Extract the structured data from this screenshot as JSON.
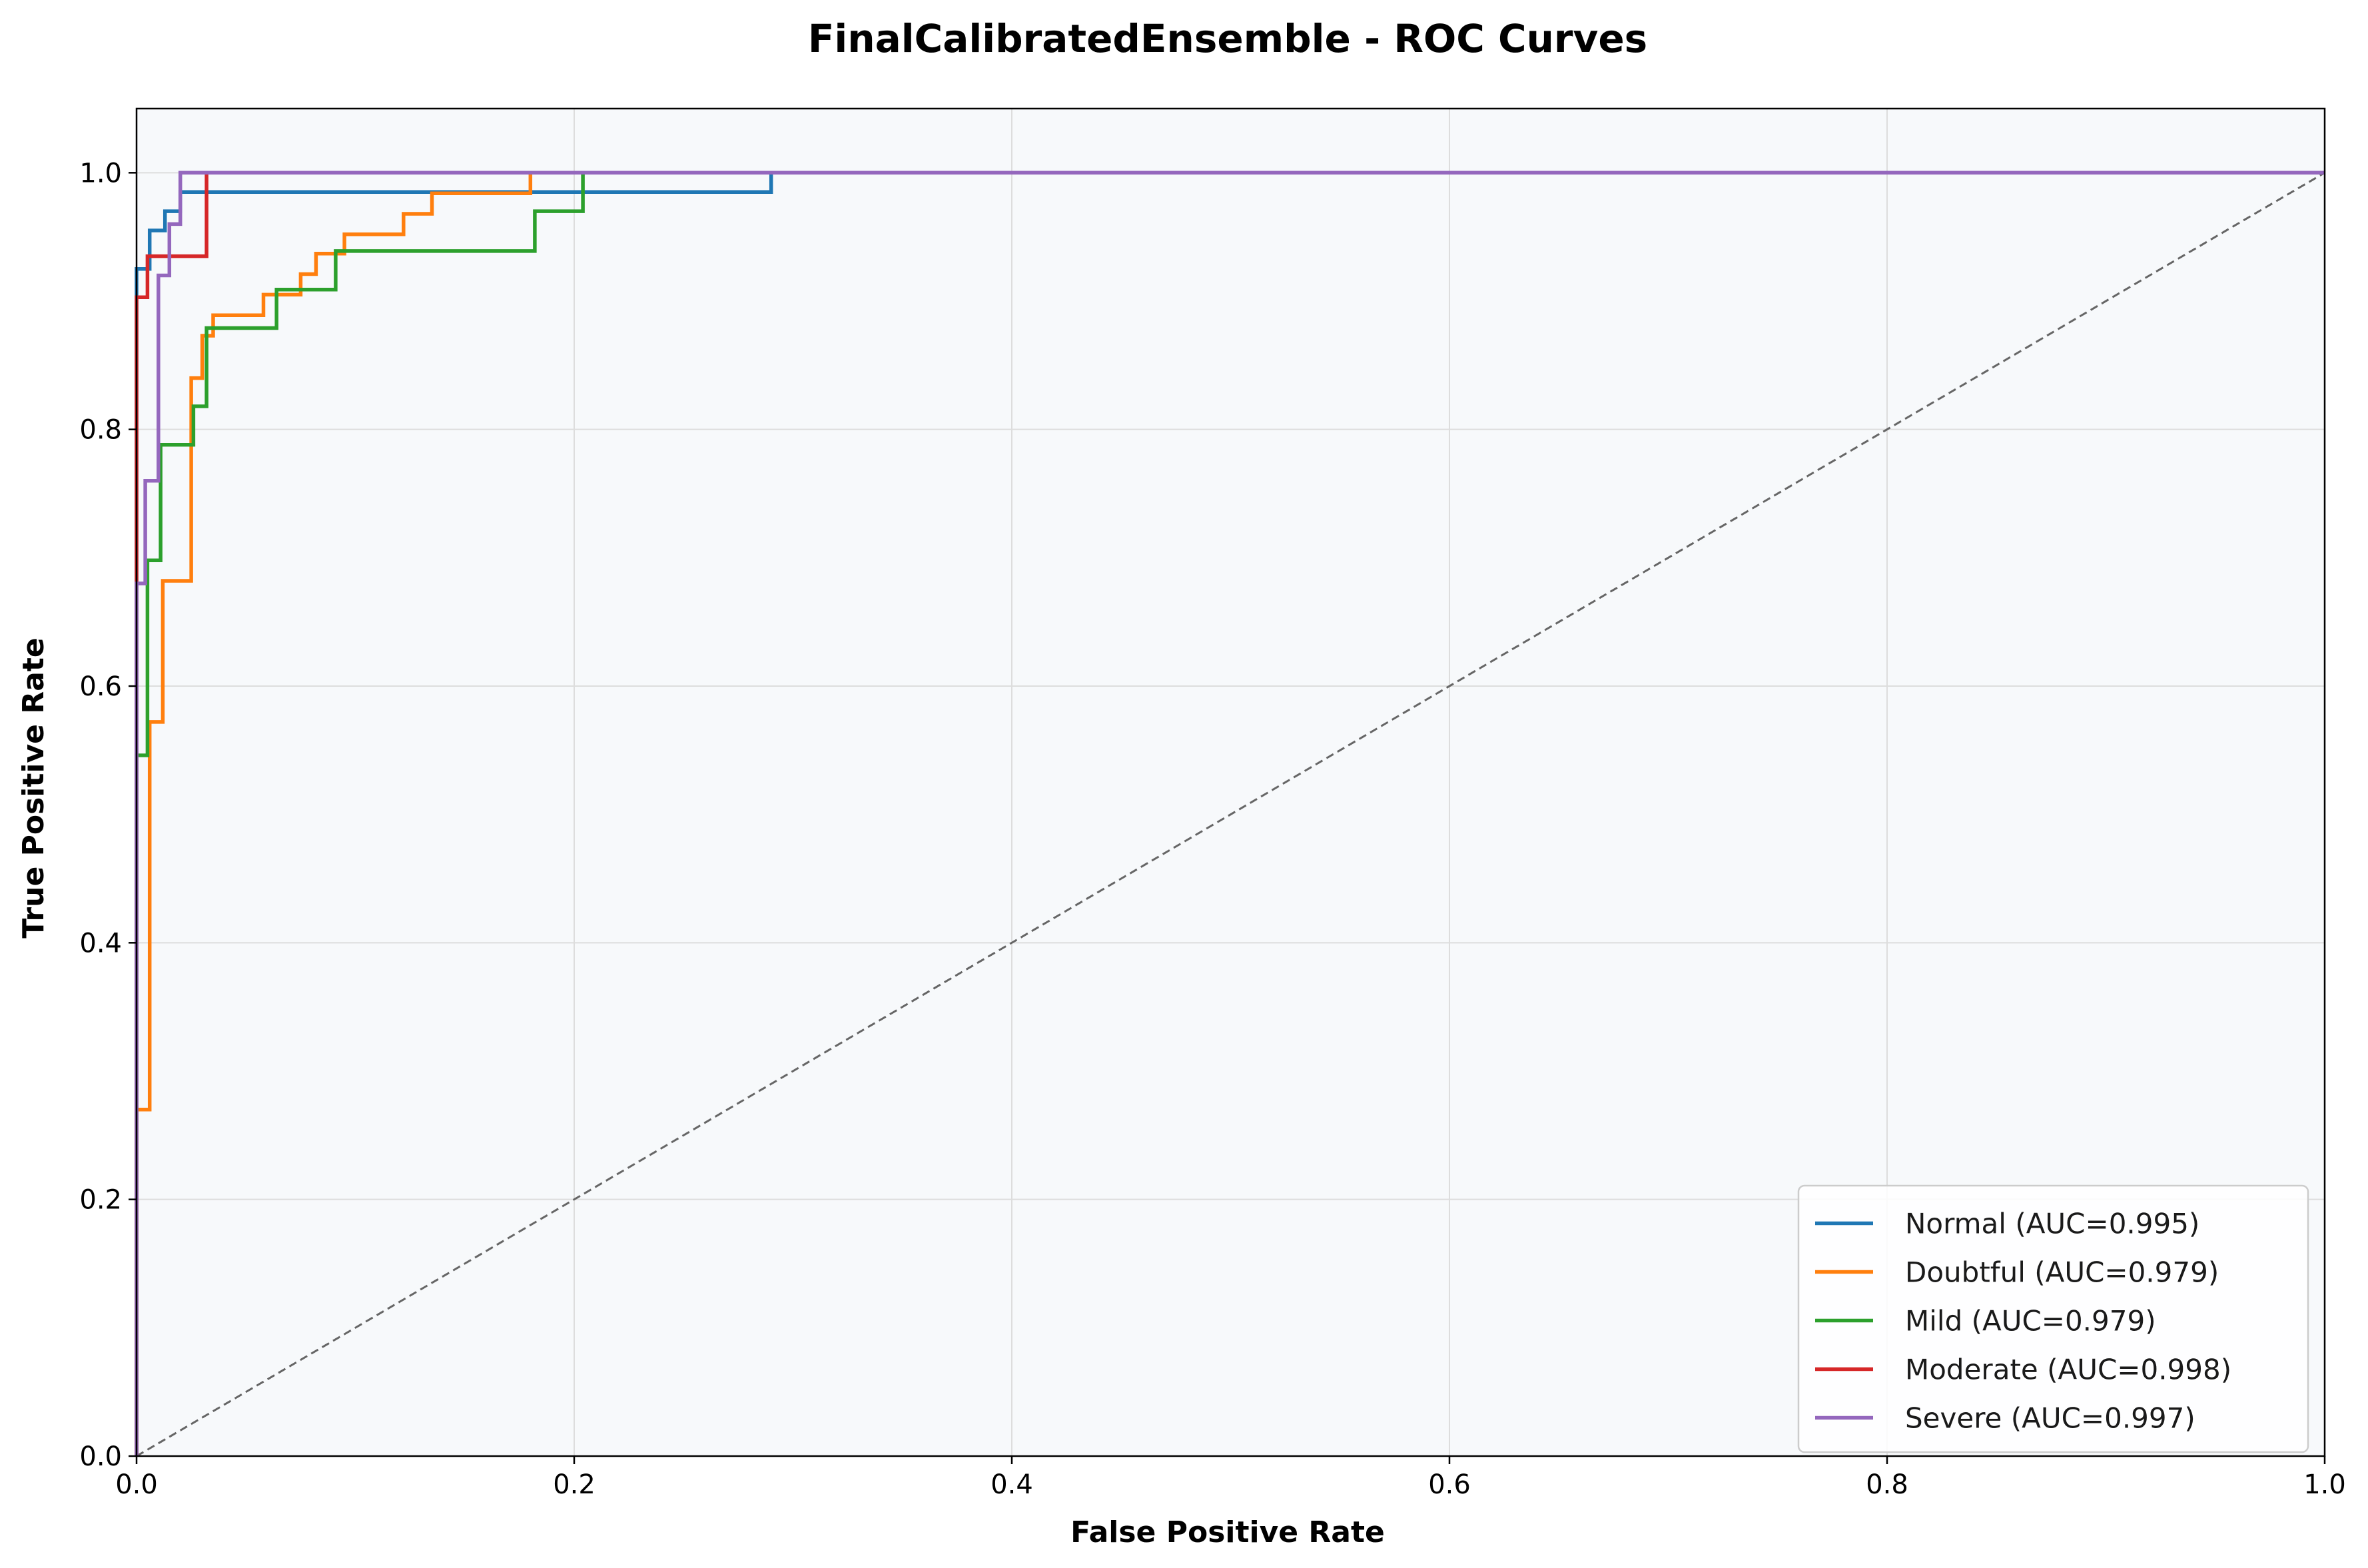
{
  "chart_data": {
    "type": "line",
    "title": "FinalCalibratedEnsemble - ROC Curves",
    "xlabel": "False Positive Rate",
    "ylabel": "True Positive Rate",
    "xlim": [
      0,
      1
    ],
    "ylim": [
      0,
      1.05
    ],
    "xticks": [
      0.0,
      0.2,
      0.4,
      0.6,
      0.8,
      1.0
    ],
    "yticks": [
      0.0,
      0.2,
      0.4,
      0.6,
      0.8,
      1.0
    ],
    "xtick_labels": [
      "0.0",
      "0.2",
      "0.4",
      "0.6",
      "0.8",
      "1.0"
    ],
    "ytick_labels": [
      "0.0",
      "0.2",
      "0.4",
      "0.6",
      "0.8",
      "1.0"
    ],
    "grid": true,
    "legend_position": "bottom-right",
    "background_color": "#f7f9fb",
    "reference_line": {
      "x": [
        0,
        1
      ],
      "y": [
        0,
        1
      ],
      "color": "#666666",
      "style": "dashed"
    },
    "series": [
      {
        "name": "Normal (AUC=0.995)",
        "color": "#1f77b4",
        "x": [
          0,
          0,
          0.006,
          0.006,
          0.013,
          0.013,
          0.02,
          0.02,
          0.29,
          0.29,
          1.0
        ],
        "y": [
          0,
          0.925,
          0.925,
          0.955,
          0.955,
          0.97,
          0.97,
          0.985,
          0.985,
          1.0,
          1.0
        ]
      },
      {
        "name": "Doubtful (AUC=0.979)",
        "color": "#ff7f0e",
        "x": [
          0,
          0,
          0.006,
          0.006,
          0.012,
          0.012,
          0.025,
          0.025,
          0.03,
          0.03,
          0.035,
          0.035,
          0.058,
          0.058,
          0.075,
          0.075,
          0.082,
          0.082,
          0.095,
          0.095,
          0.122,
          0.122,
          0.135,
          0.135,
          0.18,
          0.18,
          1.0
        ],
        "y": [
          0,
          0.27,
          0.27,
          0.572,
          0.572,
          0.682,
          0.682,
          0.84,
          0.84,
          0.873,
          0.873,
          0.889,
          0.889,
          0.905,
          0.905,
          0.921,
          0.921,
          0.937,
          0.937,
          0.952,
          0.952,
          0.968,
          0.968,
          0.984,
          0.984,
          1.0,
          1.0
        ]
      },
      {
        "name": "Mild (AUC=0.979)",
        "color": "#2ca02c",
        "x": [
          0,
          0,
          0.005,
          0.005,
          0.011,
          0.011,
          0.026,
          0.026,
          0.032,
          0.032,
          0.064,
          0.064,
          0.091,
          0.091,
          0.182,
          0.182,
          0.204,
          0.204,
          1.0
        ],
        "y": [
          0,
          0.546,
          0.546,
          0.698,
          0.698,
          0.788,
          0.788,
          0.818,
          0.818,
          0.879,
          0.879,
          0.909,
          0.909,
          0.939,
          0.939,
          0.97,
          0.97,
          1.0,
          1.0
        ]
      },
      {
        "name": "Moderate (AUC=0.998)",
        "color": "#d62728",
        "x": [
          0,
          0,
          0.005,
          0.005,
          0.032,
          0.032,
          1.0
        ],
        "y": [
          0,
          0.903,
          0.903,
          0.935,
          0.935,
          1.0,
          1.0
        ]
      },
      {
        "name": "Severe (AUC=0.997)",
        "color": "#9467bd",
        "x": [
          0,
          0,
          0.004,
          0.004,
          0.01,
          0.01,
          0.015,
          0.015,
          0.02,
          0.02,
          1.0
        ],
        "y": [
          0,
          0.68,
          0.68,
          0.76,
          0.76,
          0.92,
          0.92,
          0.96,
          0.96,
          1.0,
          1.0
        ]
      }
    ]
  }
}
